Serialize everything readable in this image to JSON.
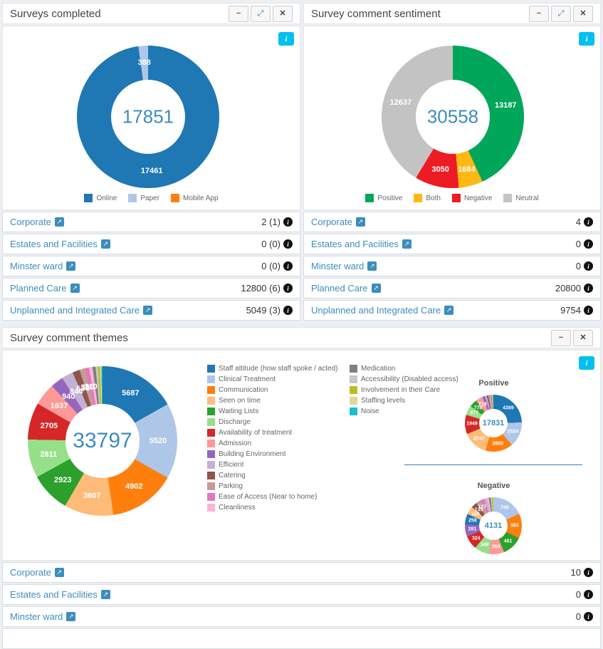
{
  "icons": {
    "minimize": "−",
    "expand": "⤢",
    "close": "✕",
    "info": "i",
    "external_link": "↗"
  },
  "panels": [
    {
      "title": "Surveys completed",
      "rows": [
        {
          "label": "Corporate",
          "value": "2 (1)"
        },
        {
          "label": "Estates and Facilities",
          "value": "0 (0)"
        },
        {
          "label": "Minster ward",
          "value": "0 (0)"
        },
        {
          "label": "Planned Care",
          "value": "12800 (6)"
        },
        {
          "label": "Unplanned and Integrated Care",
          "value": "5049 (3)"
        }
      ]
    },
    {
      "title": "Survey comment sentiment",
      "rows": [
        {
          "label": "Corporate",
          "value": "4"
        },
        {
          "label": "Estates and Facilities",
          "value": "0"
        },
        {
          "label": "Minster ward",
          "value": "0"
        },
        {
          "label": "Planned Care",
          "value": "20800"
        },
        {
          "label": "Unplanned and Integrated Care",
          "value": "9754"
        }
      ]
    },
    {
      "title": "Survey comment themes",
      "subchart_titles": {
        "positive": "Positive",
        "negative": "Negative"
      },
      "rows": [
        {
          "label": "Corporate",
          "value": "10"
        },
        {
          "label": "Estates and Facilities",
          "value": "0"
        },
        {
          "label": "Minster ward",
          "value": "0"
        }
      ]
    }
  ],
  "chart_data": [
    {
      "type": "donut",
      "title": "Surveys completed",
      "center_total": "17851",
      "categories": [
        "Online",
        "Paper",
        "Mobile App"
      ],
      "values": [
        17461,
        388,
        2
      ],
      "colors": [
        "#1f77b4",
        "#aec7e8",
        "#ff7f0e"
      ],
      "legend_position": "bottom"
    },
    {
      "type": "donut",
      "title": "Survey comment sentiment",
      "center_total": "30558",
      "categories": [
        "Positive",
        "Both",
        "Negative",
        "Neutral"
      ],
      "values": [
        13187,
        1684,
        3050,
        12637
      ],
      "colors": [
        "#00a65a",
        "#fdb813",
        "#ed1c24",
        "#c3c3c3"
      ],
      "legend_position": "bottom"
    },
    {
      "type": "donut",
      "title": "Survey comment themes",
      "center_total": "33797",
      "categories": [
        "Staff attitude (how staff spoke / acted)",
        "Clinical Treatment",
        "Communication",
        "Seen on time",
        "Waiting Lists",
        "Discharge",
        "Availability of treatment",
        "Admission",
        "Building Environment",
        "Efficient",
        "Catering",
        "Parking",
        "Ease of Access (Near to home)",
        "Cleanliness",
        "Medication",
        "Accessibility (Disabled access)",
        "Involvement in their Care",
        "Staffing levels",
        "Noise"
      ],
      "values": [
        5687,
        5520,
        4902,
        3607,
        2923,
        2811,
        2705,
        1637,
        940,
        844,
        534,
        390,
        310,
        260,
        220,
        170,
        140,
        110,
        87
      ],
      "colors": [
        "#1f77b4",
        "#aec7e8",
        "#ff7f0e",
        "#ffbb78",
        "#2ca02c",
        "#98df8a",
        "#d62728",
        "#ff9896",
        "#9467bd",
        "#c5b0d5",
        "#8c564b",
        "#c49c94",
        "#e377c2",
        "#f7b6d2",
        "#7f7f7f",
        "#c7c7c7",
        "#bcbd22",
        "#dbdb8d",
        "#17becf"
      ],
      "legend_position": "right"
    },
    {
      "type": "donut",
      "title": "Positive",
      "center_total": "17831",
      "categories": [
        "Staff attitude (how staff spoke / acted)",
        "Clinical Treatment",
        "Communication",
        "Seen on time",
        "Availability of treatment",
        "Discharge",
        "Waiting Lists",
        "Admission",
        "Building Environment",
        "Efficient",
        "Catering",
        "Parking",
        "Ease of Access (Near to home)",
        "Cleanliness",
        "Medication",
        "Accessibility (Disabled access)",
        "Involvement in their Care",
        "Staffing levels",
        "Noise"
      ],
      "values": [
        4389,
        2524,
        2803,
        2547,
        1949,
        977,
        778,
        719,
        280,
        190,
        140,
        110,
        95,
        85,
        70,
        60,
        50,
        40,
        25
      ],
      "colors": [
        "#1f77b4",
        "#aec7e8",
        "#ff7f0e",
        "#ffbb78",
        "#d62728",
        "#98df8a",
        "#2ca02c",
        "#ff9896",
        "#9467bd",
        "#c5b0d5",
        "#8c564b",
        "#c49c94",
        "#e377c2",
        "#f7b6d2",
        "#7f7f7f",
        "#c7c7c7",
        "#bcbd22",
        "#dbdb8d",
        "#17becf"
      ],
      "legend_position": "none"
    },
    {
      "type": "donut",
      "title": "Negative",
      "center_total": "4131",
      "categories": [
        "Clinical Treatment",
        "Communication",
        "Waiting Lists",
        "Admission",
        "Discharge",
        "Availability of treatment",
        "Building Environment",
        "Staff attitude (how staff spoke / acted)",
        "Seen on time",
        "Catering",
        "Parking",
        "Ease of Access (Near to home)",
        "Efficient",
        "Cleanliness",
        "Medication",
        "Accessibility (Disabled access)",
        "Involvement in their Care"
      ],
      "values": [
        745,
        584,
        481,
        359,
        349,
        324,
        281,
        258,
        189,
        135,
        127,
        80,
        60,
        50,
        45,
        35,
        29
      ],
      "colors": [
        "#aec7e8",
        "#ff7f0e",
        "#2ca02c",
        "#ff9896",
        "#98df8a",
        "#d62728",
        "#9467bd",
        "#1f77b4",
        "#ffbb78",
        "#8c564b",
        "#c49c94",
        "#e377c2",
        "#c5b0d5",
        "#f7b6d2",
        "#7f7f7f",
        "#c7c7c7",
        "#bcbd22"
      ],
      "legend_position": "none"
    }
  ]
}
